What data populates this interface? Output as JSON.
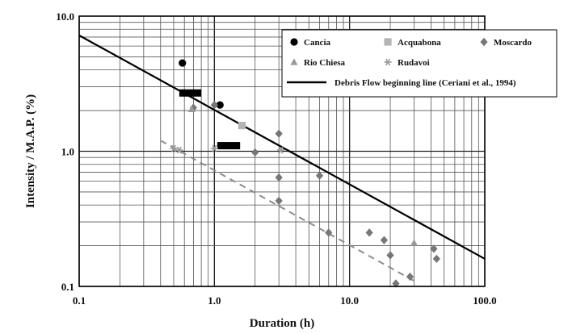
{
  "chart_data": {
    "type": "scatter",
    "xlabel": "Duration  (h)",
    "ylabel": "Intensity / M.A.P.  (%)",
    "x_scale": "log",
    "y_scale": "log",
    "xlim": [
      0.1,
      100
    ],
    "ylim": [
      0.1,
      10
    ],
    "grid": true,
    "legend_position": "top-right",
    "x_ticks": [
      "0.1",
      "1.0",
      "10.0",
      "100.0"
    ],
    "y_ticks": [
      "0.1",
      "1.0",
      "10.0"
    ],
    "series": [
      {
        "name": "Cancia",
        "marker": "circle",
        "color": "#000000",
        "points": [
          [
            0.58,
            4.5
          ],
          [
            1.1,
            2.2
          ]
        ]
      },
      {
        "name": "Acquabona",
        "marker": "square",
        "color": "#b4b4b4",
        "points": [
          [
            1.6,
            1.55
          ]
        ]
      },
      {
        "name": "Moscardo",
        "marker": "diamond",
        "color": "#777777",
        "points": [
          [
            0.7,
            2.1
          ],
          [
            1.0,
            2.2
          ],
          [
            2.0,
            0.98
          ],
          [
            3.0,
            1.35
          ],
          [
            3.0,
            0.64
          ],
          [
            3.0,
            0.43
          ],
          [
            6.0,
            0.66
          ],
          [
            7.0,
            0.25
          ],
          [
            14.0,
            0.25
          ],
          [
            18.0,
            0.22
          ],
          [
            20.0,
            0.17
          ],
          [
            22.0,
            0.105
          ],
          [
            28.0,
            0.118
          ],
          [
            42.0,
            0.19
          ],
          [
            44.0,
            0.16
          ]
        ]
      },
      {
        "name": "Rio Chiesa",
        "marker": "triangle",
        "color": "#999999",
        "points": [
          [
            0.68,
            2.05
          ],
          [
            30.0,
            0.21
          ]
        ]
      },
      {
        "name": "Rudavoi",
        "marker": "star",
        "color": "#999999",
        "points": [
          [
            0.5,
            1.05
          ],
          [
            0.55,
            1.02
          ],
          [
            1.0,
            1.05
          ],
          [
            3.1,
            1.02
          ]
        ]
      }
    ],
    "bars": [
      {
        "x_start": 0.55,
        "x_end": 0.8,
        "y": 2.7
      },
      {
        "x_start": 1.05,
        "x_end": 1.55,
        "y": 1.1
      }
    ],
    "lines": [
      {
        "name": "Debris Flow beginning line (Ceriani et al., 1994)",
        "style": "solid",
        "color": "#000000",
        "points": [
          [
            0.1,
            7.2
          ],
          [
            100,
            0.16
          ]
        ]
      },
      {
        "name": "",
        "style": "dashed",
        "color": "#8c8c8c",
        "points": [
          [
            0.4,
            1.2
          ],
          [
            30,
            0.11
          ]
        ]
      }
    ]
  }
}
